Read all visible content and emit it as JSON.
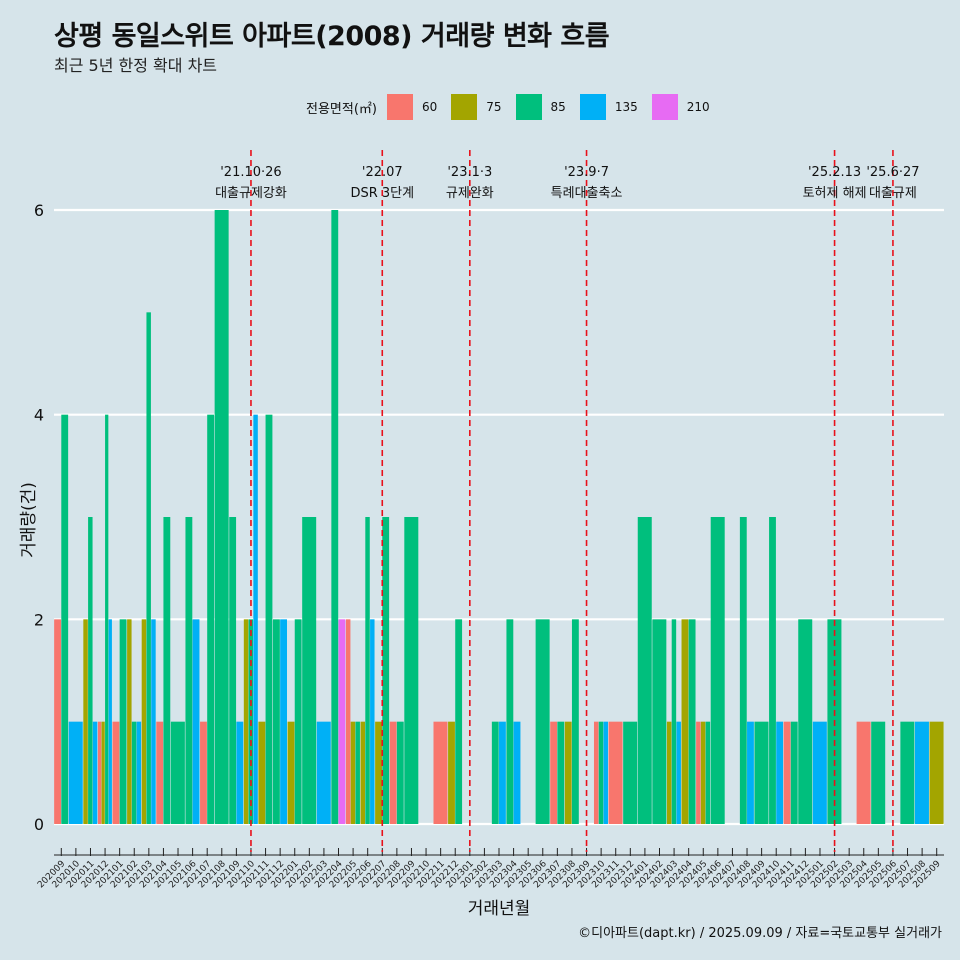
{
  "title": "상평 동일스위트 아파트(2008) 거래량 변화 흐름",
  "subtitle": "최근 5년 한정 확대 차트",
  "legend": {
    "title": "전용면적(㎡)",
    "items": [
      {
        "label": "60",
        "color": "#f8766d"
      },
      {
        "label": "75",
        "color": "#a3a500"
      },
      {
        "label": "85",
        "color": "#00bf7d"
      },
      {
        "label": "135",
        "color": "#00b0f6"
      },
      {
        "label": "210",
        "color": "#e76bf3"
      }
    ]
  },
  "caption": "©디아파트(dapt.kr) / 2025.09.09 / 자료=국토교통부 실거래가",
  "chart_data": {
    "type": "bar",
    "xlabel": "거래년월",
    "ylabel": "거래량(건)",
    "ylim": [
      0,
      6
    ],
    "yticks": [
      0,
      2,
      4,
      6
    ],
    "grid": true,
    "legend_position": "top",
    "categories": [
      "202009",
      "202010",
      "202011",
      "202012",
      "202101",
      "202102",
      "202103",
      "202104",
      "202105",
      "202106",
      "202107",
      "202108",
      "202109",
      "202110",
      "202111",
      "202112",
      "202201",
      "202202",
      "202203",
      "202204",
      "202205",
      "202206",
      "202207",
      "202208",
      "202209",
      "202210",
      "202211",
      "202212",
      "202301",
      "202302",
      "202303",
      "202304",
      "202305",
      "202306",
      "202307",
      "202308",
      "202309",
      "202310",
      "202311",
      "202312",
      "202401",
      "202402",
      "202403",
      "202404",
      "202405",
      "202406",
      "202407",
      "202408",
      "202409",
      "202410",
      "202411",
      "202412",
      "202501",
      "202502",
      "202503",
      "202504",
      "202505",
      "202506",
      "202507",
      "202508",
      "202509"
    ],
    "series": [
      {
        "name": "60",
        "values": [
          2,
          0,
          0,
          1,
          1,
          0,
          0,
          1,
          0,
          0,
          1,
          0,
          0,
          0,
          0,
          0,
          0,
          0,
          0,
          0,
          2,
          0,
          0,
          1,
          0,
          0,
          1,
          0,
          0,
          0,
          0,
          0,
          0,
          0,
          1,
          0,
          0,
          1,
          1,
          0,
          0,
          0,
          0,
          0,
          1,
          0,
          0,
          0,
          0,
          0,
          1,
          0,
          0,
          0,
          0,
          1,
          0,
          0,
          0,
          0,
          0
        ]
      },
      {
        "name": "75",
        "values": [
          0,
          0,
          2,
          1,
          0,
          2,
          2,
          0,
          0,
          0,
          0,
          0,
          0,
          2,
          1,
          0,
          1,
          0,
          0,
          0,
          1,
          1,
          1,
          0,
          0,
          0,
          0,
          1,
          0,
          0,
          0,
          0,
          0,
          0,
          0,
          1,
          0,
          0,
          0,
          0,
          0,
          0,
          1,
          2,
          1,
          0,
          0,
          0,
          0,
          0,
          0,
          0,
          0,
          0,
          0,
          0,
          0,
          0,
          0,
          0,
          1
        ]
      },
      {
        "name": "85",
        "values": [
          4,
          0,
          3,
          4,
          2,
          1,
          5,
          3,
          1,
          3,
          4,
          6,
          3,
          2,
          4,
          2,
          2,
          3,
          0,
          6,
          1,
          3,
          3,
          1,
          3,
          0,
          0,
          2,
          0,
          0,
          1,
          2,
          0,
          2,
          1,
          2,
          0,
          1,
          0,
          1,
          3,
          2,
          2,
          2,
          1,
          3,
          0,
          3,
          1,
          3,
          1,
          2,
          0,
          2,
          0,
          0,
          1,
          0,
          1,
          0,
          0
        ]
      },
      {
        "name": "135",
        "values": [
          0,
          1,
          1,
          2,
          0,
          1,
          2,
          0,
          0,
          2,
          0,
          0,
          1,
          4,
          0,
          2,
          0,
          0,
          1,
          0,
          0,
          2,
          0,
          0,
          0,
          0,
          0,
          0,
          0,
          0,
          1,
          1,
          0,
          0,
          0,
          0,
          0,
          1,
          0,
          0,
          0,
          0,
          1,
          0,
          0,
          0,
          0,
          1,
          0,
          1,
          0,
          0,
          1,
          0,
          0,
          0,
          0,
          0,
          0,
          1,
          0
        ]
      },
      {
        "name": "210",
        "values": [
          0,
          0,
          0,
          0,
          0,
          0,
          0,
          0,
          0,
          0,
          0,
          0,
          0,
          0,
          0,
          0,
          0,
          0,
          0,
          2,
          0,
          0,
          0,
          0,
          0,
          0,
          0,
          0,
          0,
          0,
          0,
          0,
          0,
          0,
          0,
          0,
          0,
          0,
          0,
          0,
          0,
          0,
          0,
          0,
          0,
          0,
          0,
          0,
          0,
          0,
          0,
          0,
          0,
          0,
          0,
          0,
          0,
          0,
          0,
          0,
          0
        ]
      }
    ],
    "annotations": [
      {
        "x": "202110",
        "date": "'21.10·26",
        "label": "대출규제강화"
      },
      {
        "x": "202207",
        "date": "'22.07",
        "label": "DSR 3단계"
      },
      {
        "x": "202301",
        "date": "'23.1·3",
        "label": "규제완화"
      },
      {
        "x": "202309",
        "date": "'23.9·7",
        "label": "특례대출축소"
      },
      {
        "x": "202502",
        "date": "'25.2.13",
        "label": "토허제 해제"
      },
      {
        "x": "202506",
        "date": "'25.6·27",
        "label": "대출규제"
      }
    ]
  }
}
